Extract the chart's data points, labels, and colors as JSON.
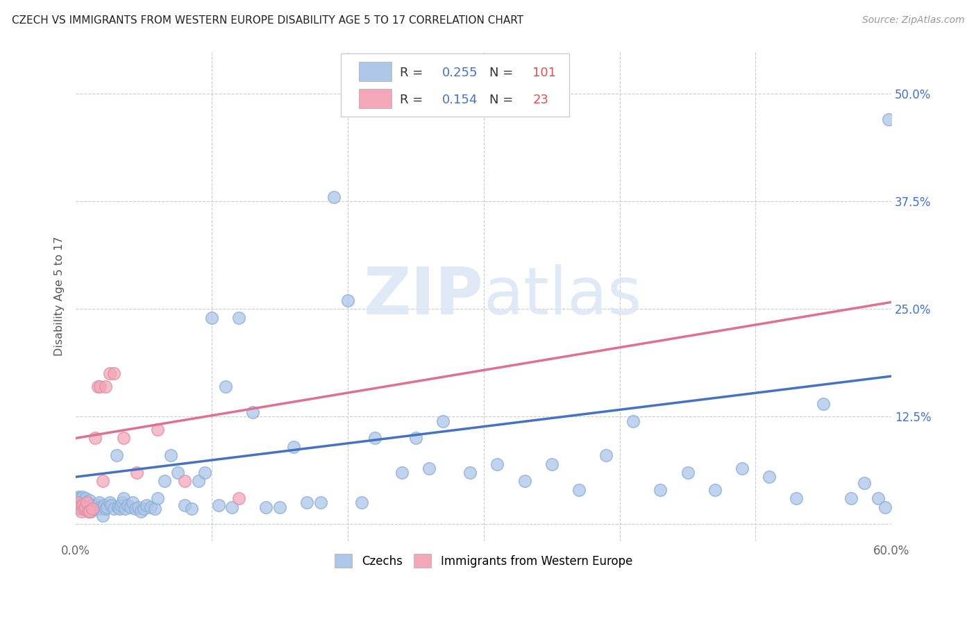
{
  "title": "CZECH VS IMMIGRANTS FROM WESTERN EUROPE DISABILITY AGE 5 TO 17 CORRELATION CHART",
  "source": "Source: ZipAtlas.com",
  "ylabel": "Disability Age 5 to 17",
  "x_min": 0.0,
  "x_max": 0.6,
  "y_min": -0.02,
  "y_max": 0.55,
  "x_ticks": [
    0.0,
    0.1,
    0.2,
    0.3,
    0.4,
    0.5,
    0.6
  ],
  "x_tick_labels": [
    "0.0%",
    "",
    "",
    "",
    "",
    "",
    "60.0%"
  ],
  "y_ticks": [
    0.0,
    0.125,
    0.25,
    0.375,
    0.5
  ],
  "y_tick_labels": [
    "",
    "12.5%",
    "25.0%",
    "37.5%",
    "50.0%"
  ],
  "czechs_R": 0.255,
  "czechs_N": 101,
  "western_R": 0.154,
  "western_N": 23,
  "czechs_color": "#aec6e8",
  "western_color": "#f4a7b9",
  "czechs_line_color": "#4472c4",
  "western_line_color": "#e07090",
  "watermark_color": "#dce8f5",
  "czechs_x": [
    0.001,
    0.001,
    0.002,
    0.002,
    0.002,
    0.003,
    0.003,
    0.003,
    0.004,
    0.004,
    0.005,
    0.005,
    0.005,
    0.006,
    0.006,
    0.007,
    0.007,
    0.008,
    0.008,
    0.009,
    0.01,
    0.01,
    0.011,
    0.012,
    0.013,
    0.014,
    0.015,
    0.016,
    0.017,
    0.018,
    0.019,
    0.02,
    0.021,
    0.022,
    0.023,
    0.025,
    0.026,
    0.028,
    0.03,
    0.031,
    0.032,
    0.033,
    0.034,
    0.035,
    0.036,
    0.038,
    0.04,
    0.042,
    0.044,
    0.046,
    0.048,
    0.05,
    0.052,
    0.055,
    0.058,
    0.06,
    0.065,
    0.07,
    0.075,
    0.08,
    0.085,
    0.09,
    0.095,
    0.1,
    0.105,
    0.11,
    0.115,
    0.12,
    0.13,
    0.14,
    0.15,
    0.16,
    0.17,
    0.18,
    0.19,
    0.2,
    0.21,
    0.22,
    0.24,
    0.25,
    0.26,
    0.27,
    0.29,
    0.31,
    0.33,
    0.35,
    0.37,
    0.39,
    0.41,
    0.43,
    0.45,
    0.47,
    0.49,
    0.51,
    0.53,
    0.55,
    0.57,
    0.58,
    0.59,
    0.595,
    0.598
  ],
  "czechs_y": [
    0.03,
    0.025,
    0.022,
    0.028,
    0.032,
    0.025,
    0.02,
    0.03,
    0.018,
    0.025,
    0.02,
    0.022,
    0.032,
    0.025,
    0.018,
    0.02,
    0.03,
    0.018,
    0.022,
    0.025,
    0.02,
    0.028,
    0.015,
    0.022,
    0.018,
    0.02,
    0.018,
    0.022,
    0.025,
    0.02,
    0.018,
    0.01,
    0.022,
    0.018,
    0.02,
    0.025,
    0.022,
    0.018,
    0.08,
    0.02,
    0.018,
    0.022,
    0.025,
    0.03,
    0.018,
    0.022,
    0.02,
    0.025,
    0.018,
    0.02,
    0.015,
    0.018,
    0.022,
    0.02,
    0.018,
    0.03,
    0.05,
    0.08,
    0.06,
    0.022,
    0.018,
    0.05,
    0.06,
    0.24,
    0.022,
    0.16,
    0.02,
    0.24,
    0.13,
    0.02,
    0.02,
    0.09,
    0.025,
    0.025,
    0.38,
    0.26,
    0.025,
    0.1,
    0.06,
    0.1,
    0.065,
    0.12,
    0.06,
    0.07,
    0.05,
    0.07,
    0.04,
    0.08,
    0.12,
    0.04,
    0.06,
    0.04,
    0.065,
    0.055,
    0.03,
    0.14,
    0.03,
    0.048,
    0.03,
    0.02,
    0.47
  ],
  "western_x": [
    0.001,
    0.002,
    0.003,
    0.004,
    0.005,
    0.006,
    0.007,
    0.008,
    0.009,
    0.01,
    0.012,
    0.014,
    0.016,
    0.018,
    0.02,
    0.022,
    0.025,
    0.028,
    0.035,
    0.045,
    0.06,
    0.08,
    0.12
  ],
  "western_y": [
    0.025,
    0.02,
    0.018,
    0.015,
    0.022,
    0.018,
    0.02,
    0.025,
    0.015,
    0.015,
    0.018,
    0.1,
    0.16,
    0.16,
    0.05,
    0.16,
    0.175,
    0.175,
    0.1,
    0.06,
    0.11,
    0.05,
    0.03
  ],
  "czechs_trendline_x0": 0.0,
  "czechs_trendline_y0": 0.055,
  "czechs_trendline_x1": 0.6,
  "czechs_trendline_y1": 0.172,
  "western_trendline_x0": 0.0,
  "western_trendline_y0": 0.1,
  "western_trendline_x1": 0.6,
  "western_trendline_y1": 0.258
}
